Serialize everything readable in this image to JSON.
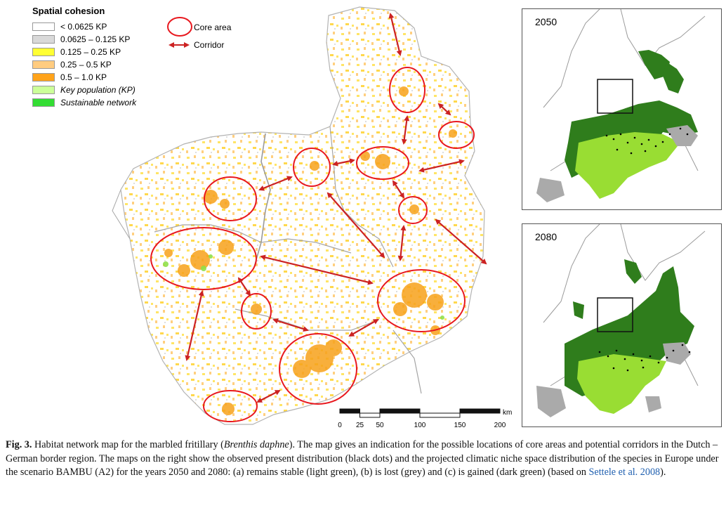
{
  "legend": {
    "title": "Spatial cohesion",
    "items": [
      {
        "label": "< 0.0625 KP",
        "color": "#ffffff",
        "italic": false
      },
      {
        "label": "0.0625 – 0.125 KP",
        "color": "#d9d9d9",
        "italic": false
      },
      {
        "label": "0.125 – 0.25 KP",
        "color": "#ffff33",
        "italic": false
      },
      {
        "label": "0.25 – 0.5 KP",
        "color": "#ffcc80",
        "italic": false
      },
      {
        "label": "0.5 – 1.0 KP",
        "color": "#ffa31a",
        "italic": false
      },
      {
        "label": "Key population (KP)",
        "color": "#ccff99",
        "italic": true
      },
      {
        "label": "Sustainable network",
        "color": "#33dd33",
        "italic": true
      }
    ],
    "core_area_label": "Core area",
    "corridor_label": "Corridor",
    "colors": {
      "ellipse": "#e8181e",
      "arrow": "#cc2222"
    }
  },
  "scale_bar": {
    "labels": [
      "0",
      "25",
      "50",
      "100",
      "150",
      "200"
    ],
    "values": [
      0,
      25,
      50,
      100,
      150,
      200
    ],
    "unit": "km"
  },
  "insets": [
    {
      "year": "2050"
    },
    {
      "year": "2080"
    }
  ],
  "inset_colors": {
    "stable": "#99dd33",
    "lost": "#aaaaaa",
    "gained": "#2f7d1c",
    "observed": "#000000"
  },
  "caption": {
    "label": "Fig. 3.",
    "part1": "Habitat network map for the marbled fritillary (",
    "species": "Brenthis daphne",
    "part2": "). The map gives an indication for the possible locations of core areas and potential corridors in the Dutch – German border region. The maps on the right show the observed present distribution (black dots) and the projected climatic niche space distribution of the species in Europe under the scenario BAMBU (A2) for the years 2050 and 2080: (a) remains stable (light green), (b) is lost (grey) and (c) is gained (dark green) (based on ",
    "ref": "Settele et al. 2008",
    "part3": ")."
  }
}
